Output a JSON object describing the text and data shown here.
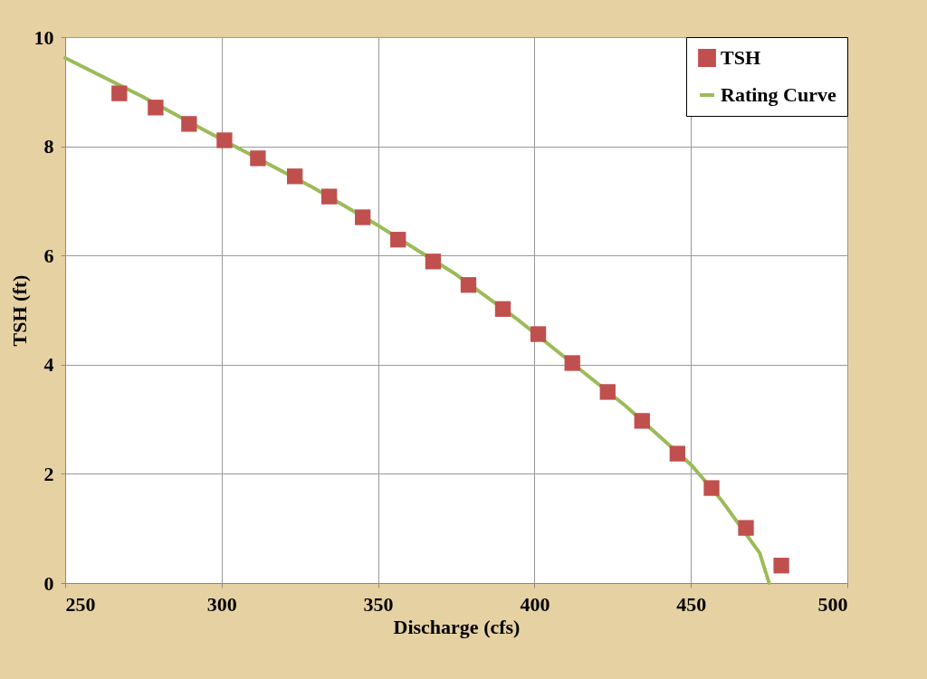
{
  "chart_data": {
    "type": "scatter",
    "xlabel": "Discharge (cfs)",
    "ylabel": "TSH (ft)",
    "xlim": [
      250,
      500
    ],
    "xticks": [
      250,
      300,
      350,
      400,
      450,
      500
    ],
    "ylim": [
      0,
      10
    ],
    "yticks": [
      0,
      2,
      4,
      6,
      8,
      10
    ],
    "grid": true,
    "legend": "top right",
    "series": [
      {
        "name": "TSH",
        "marker": "square",
        "color": "#c0504d",
        "x": [
          267.3,
          278.9,
          289.6,
          300.9,
          311.6,
          323.4,
          334.4,
          345.1,
          356.4,
          367.6,
          378.9,
          389.9,
          401.2,
          412.1,
          423.4,
          434.4,
          445.7,
          456.6,
          467.6,
          478.9
        ],
        "values": [
          8.97,
          8.71,
          8.41,
          8.11,
          7.78,
          7.45,
          7.08,
          6.7,
          6.29,
          5.89,
          5.46,
          5.02,
          4.56,
          4.03,
          3.5,
          2.97,
          2.37,
          1.74,
          1.01,
          0.32
        ]
      },
      {
        "name": "Rating Curve",
        "type": "line",
        "line_style": "solid",
        "marker": "none",
        "color": "#9bbb59",
        "x": [
          250,
          275,
          295,
          329,
          350,
          375,
          395,
          429,
          450,
          460,
          472,
          475
        ],
        "values": [
          9.62,
          8.9,
          8.28,
          7.25,
          6.55,
          5.65,
          4.81,
          3.25,
          2.17,
          1.5,
          0.55,
          0
        ]
      }
    ]
  }
}
